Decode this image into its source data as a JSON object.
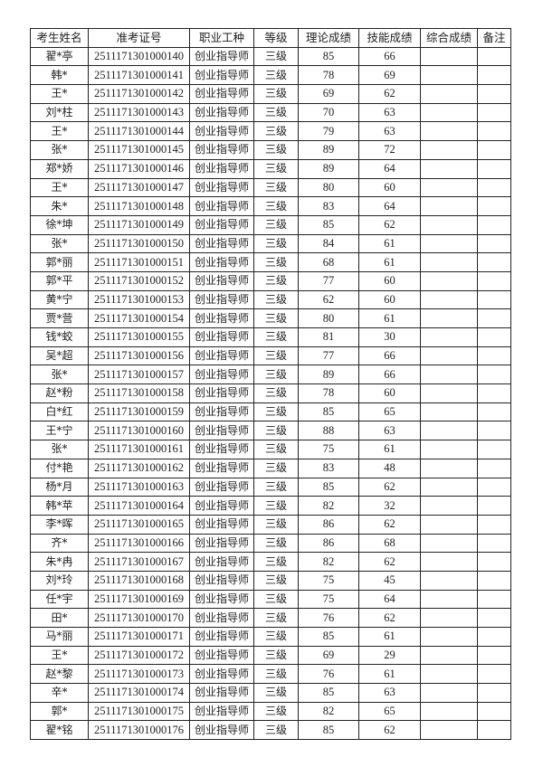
{
  "headers": [
    "考生姓名",
    "准考证号",
    "职业工种",
    "等级",
    "理论成绩",
    "技能成绩",
    "综合成绩",
    "备注"
  ],
  "rows": [
    {
      "name": "翟*亭",
      "id": "2511171301000140",
      "job": "创业指导师",
      "level": "三级",
      "theory": "85",
      "skill": "66",
      "total": "",
      "note": ""
    },
    {
      "name": "韩*",
      "id": "2511171301000141",
      "job": "创业指导师",
      "level": "三级",
      "theory": "78",
      "skill": "69",
      "total": "",
      "note": ""
    },
    {
      "name": "王*",
      "id": "2511171301000142",
      "job": "创业指导师",
      "level": "三级",
      "theory": "69",
      "skill": "62",
      "total": "",
      "note": ""
    },
    {
      "name": "刘*柱",
      "id": "2511171301000143",
      "job": "创业指导师",
      "level": "三级",
      "theory": "70",
      "skill": "63",
      "total": "",
      "note": ""
    },
    {
      "name": "王*",
      "id": "2511171301000144",
      "job": "创业指导师",
      "level": "三级",
      "theory": "79",
      "skill": "63",
      "total": "",
      "note": ""
    },
    {
      "name": "张*",
      "id": "2511171301000145",
      "job": "创业指导师",
      "level": "三级",
      "theory": "89",
      "skill": "72",
      "total": "",
      "note": ""
    },
    {
      "name": "郑*娇",
      "id": "2511171301000146",
      "job": "创业指导师",
      "level": "三级",
      "theory": "89",
      "skill": "64",
      "total": "",
      "note": ""
    },
    {
      "name": "王*",
      "id": "2511171301000147",
      "job": "创业指导师",
      "level": "三级",
      "theory": "80",
      "skill": "60",
      "total": "",
      "note": ""
    },
    {
      "name": "朱*",
      "id": "2511171301000148",
      "job": "创业指导师",
      "level": "三级",
      "theory": "83",
      "skill": "64",
      "total": "",
      "note": ""
    },
    {
      "name": "徐*坤",
      "id": "2511171301000149",
      "job": "创业指导师",
      "level": "三级",
      "theory": "85",
      "skill": "62",
      "total": "",
      "note": ""
    },
    {
      "name": "张*",
      "id": "2511171301000150",
      "job": "创业指导师",
      "level": "三级",
      "theory": "84",
      "skill": "61",
      "total": "",
      "note": ""
    },
    {
      "name": "郭*丽",
      "id": "2511171301000151",
      "job": "创业指导师",
      "level": "三级",
      "theory": "68",
      "skill": "61",
      "total": "",
      "note": ""
    },
    {
      "name": "郭*平",
      "id": "2511171301000152",
      "job": "创业指导师",
      "level": "三级",
      "theory": "77",
      "skill": "60",
      "total": "",
      "note": ""
    },
    {
      "name": "黄*宁",
      "id": "2511171301000153",
      "job": "创业指导师",
      "level": "三级",
      "theory": "62",
      "skill": "60",
      "total": "",
      "note": ""
    },
    {
      "name": "贾*营",
      "id": "2511171301000154",
      "job": "创业指导师",
      "level": "三级",
      "theory": "80",
      "skill": "61",
      "total": "",
      "note": ""
    },
    {
      "name": "钱*蛟",
      "id": "2511171301000155",
      "job": "创业指导师",
      "level": "三级",
      "theory": "81",
      "skill": "30",
      "total": "",
      "note": ""
    },
    {
      "name": "吴*超",
      "id": "2511171301000156",
      "job": "创业指导师",
      "level": "三级",
      "theory": "77",
      "skill": "66",
      "total": "",
      "note": ""
    },
    {
      "name": "张*",
      "id": "2511171301000157",
      "job": "创业指导师",
      "level": "三级",
      "theory": "89",
      "skill": "66",
      "total": "",
      "note": ""
    },
    {
      "name": "赵*粉",
      "id": "2511171301000158",
      "job": "创业指导师",
      "level": "三级",
      "theory": "78",
      "skill": "60",
      "total": "",
      "note": ""
    },
    {
      "name": "白*红",
      "id": "2511171301000159",
      "job": "创业指导师",
      "level": "三级",
      "theory": "85",
      "skill": "65",
      "total": "",
      "note": ""
    },
    {
      "name": "王*宁",
      "id": "2511171301000160",
      "job": "创业指导师",
      "level": "三级",
      "theory": "88",
      "skill": "63",
      "total": "",
      "note": ""
    },
    {
      "name": "张*",
      "id": "2511171301000161",
      "job": "创业指导师",
      "level": "三级",
      "theory": "75",
      "skill": "61",
      "total": "",
      "note": ""
    },
    {
      "name": "付*艳",
      "id": "2511171301000162",
      "job": "创业指导师",
      "level": "三级",
      "theory": "83",
      "skill": "48",
      "total": "",
      "note": ""
    },
    {
      "name": "杨*月",
      "id": "2511171301000163",
      "job": "创业指导师",
      "level": "三级",
      "theory": "85",
      "skill": "62",
      "total": "",
      "note": ""
    },
    {
      "name": "韩*苹",
      "id": "2511171301000164",
      "job": "创业指导师",
      "level": "三级",
      "theory": "82",
      "skill": "32",
      "total": "",
      "note": ""
    },
    {
      "name": "李*晖",
      "id": "2511171301000165",
      "job": "创业指导师",
      "level": "三级",
      "theory": "86",
      "skill": "62",
      "total": "",
      "note": ""
    },
    {
      "name": "齐*",
      "id": "2511171301000166",
      "job": "创业指导师",
      "level": "三级",
      "theory": "86",
      "skill": "68",
      "total": "",
      "note": ""
    },
    {
      "name": "朱*冉",
      "id": "2511171301000167",
      "job": "创业指导师",
      "level": "三级",
      "theory": "82",
      "skill": "62",
      "total": "",
      "note": ""
    },
    {
      "name": "刘*玲",
      "id": "2511171301000168",
      "job": "创业指导师",
      "level": "三级",
      "theory": "75",
      "skill": "45",
      "total": "",
      "note": ""
    },
    {
      "name": "任*宇",
      "id": "2511171301000169",
      "job": "创业指导师",
      "level": "三级",
      "theory": "75",
      "skill": "64",
      "total": "",
      "note": ""
    },
    {
      "name": "田*",
      "id": "2511171301000170",
      "job": "创业指导师",
      "level": "三级",
      "theory": "76",
      "skill": "62",
      "total": "",
      "note": ""
    },
    {
      "name": "马*丽",
      "id": "2511171301000171",
      "job": "创业指导师",
      "level": "三级",
      "theory": "85",
      "skill": "61",
      "total": "",
      "note": ""
    },
    {
      "name": "王*",
      "id": "2511171301000172",
      "job": "创业指导师",
      "level": "三级",
      "theory": "69",
      "skill": "29",
      "total": "",
      "note": ""
    },
    {
      "name": "赵*黎",
      "id": "2511171301000173",
      "job": "创业指导师",
      "level": "三级",
      "theory": "76",
      "skill": "61",
      "total": "",
      "note": ""
    },
    {
      "name": "辛*",
      "id": "2511171301000174",
      "job": "创业指导师",
      "level": "三级",
      "theory": "85",
      "skill": "63",
      "total": "",
      "note": ""
    },
    {
      "name": "郭*",
      "id": "2511171301000175",
      "job": "创业指导师",
      "level": "三级",
      "theory": "82",
      "skill": "65",
      "total": "",
      "note": ""
    },
    {
      "name": "翟*铭",
      "id": "2511171301000176",
      "job": "创业指导师",
      "level": "三级",
      "theory": "85",
      "skill": "62",
      "total": "",
      "note": ""
    }
  ]
}
